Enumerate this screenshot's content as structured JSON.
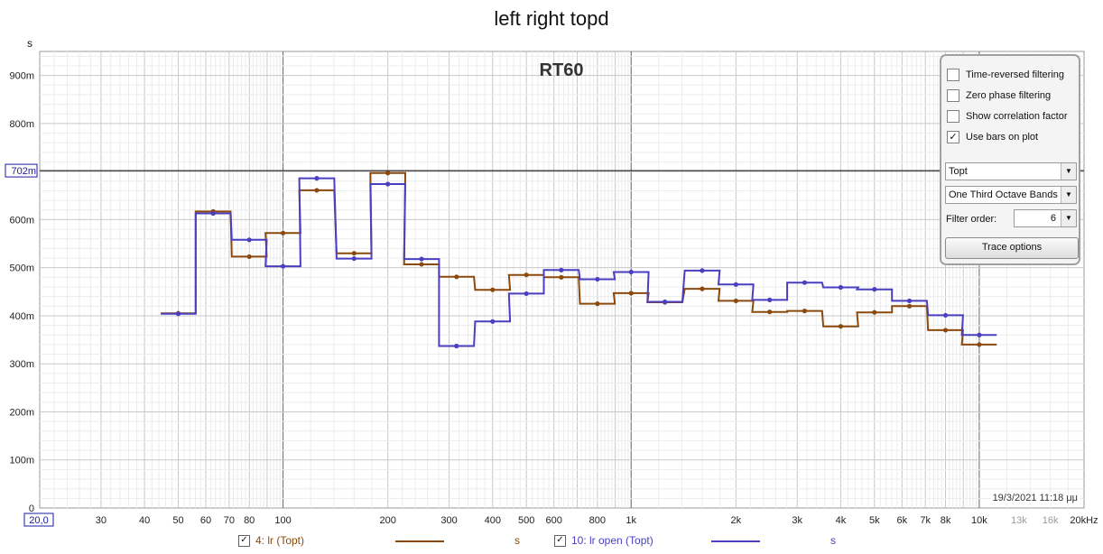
{
  "title": "left right topd",
  "y_unit": "s",
  "datestamp": "19/3/2021 11:18 μμ",
  "controls": {
    "checkboxes": [
      {
        "label": "Time-reversed filtering",
        "checked": false
      },
      {
        "label": "Zero phase filtering",
        "checked": false
      },
      {
        "label": "Show correlation factor",
        "checked": false
      },
      {
        "label": "Use bars on plot",
        "checked": true
      }
    ],
    "check_mark": "✓",
    "measure_select": "Topt",
    "band_select": "One Third Octave Bands",
    "filter_order_label": "Filter order:",
    "filter_order_value": "6",
    "trace_options_label": "Trace options",
    "dropdown_arrow": "▼"
  },
  "legend": [
    {
      "label": "4: lr (Topt)",
      "unit": "s",
      "color": "#8b4a0c"
    },
    {
      "label": "10: lr open (Topt)",
      "unit": "s",
      "color": "#4a3fc0"
    }
  ],
  "chart_data": {
    "type": "line",
    "title": "RT60",
    "x_scale": "log",
    "xlim": [
      20,
      20000
    ],
    "ylim": [
      0,
      0.95
    ],
    "grid": true,
    "legend_placement": "bottom",
    "cursor_y": 0.702,
    "cursor_y_label": "702m",
    "x_ticks": [
      {
        "value": 20,
        "label": "20,0"
      },
      {
        "value": 30,
        "label": "30"
      },
      {
        "value": 40,
        "label": "40"
      },
      {
        "value": 50,
        "label": "50"
      },
      {
        "value": 60,
        "label": "60"
      },
      {
        "value": 70,
        "label": "70"
      },
      {
        "value": 80,
        "label": "80"
      },
      {
        "value": 100,
        "label": "100"
      },
      {
        "value": 200,
        "label": "200"
      },
      {
        "value": 300,
        "label": "300"
      },
      {
        "value": 400,
        "label": "400"
      },
      {
        "value": 500,
        "label": "500"
      },
      {
        "value": 600,
        "label": "600"
      },
      {
        "value": 800,
        "label": "800"
      },
      {
        "value": 1000,
        "label": "1k"
      },
      {
        "value": 2000,
        "label": "2k"
      },
      {
        "value": 3000,
        "label": "3k"
      },
      {
        "value": 4000,
        "label": "4k"
      },
      {
        "value": 5000,
        "label": "5k"
      },
      {
        "value": 6000,
        "label": "6k"
      },
      {
        "value": 7000,
        "label": "7k"
      },
      {
        "value": 8000,
        "label": "8k"
      },
      {
        "value": 10000,
        "label": "10k"
      },
      {
        "value": 13000,
        "label": "13k"
      },
      {
        "value": 16000,
        "label": "16k"
      },
      {
        "value": 20000,
        "label": "20kHz"
      }
    ],
    "y_ticks": [
      {
        "value": 0,
        "label": "0"
      },
      {
        "value": 0.1,
        "label": "100m"
      },
      {
        "value": 0.2,
        "label": "200m"
      },
      {
        "value": 0.3,
        "label": "300m"
      },
      {
        "value": 0.4,
        "label": "400m"
      },
      {
        "value": 0.5,
        "label": "500m"
      },
      {
        "value": 0.6,
        "label": "600m"
      },
      {
        "value": 0.8,
        "label": "800m"
      },
      {
        "value": 0.9,
        "label": "900m"
      }
    ],
    "x": [
      50,
      63,
      80,
      100,
      125,
      160,
      200,
      250,
      315,
      400,
      500,
      630,
      800,
      1000,
      1250,
      1600,
      2000,
      2500,
      3150,
      4000,
      5000,
      6300,
      8000,
      10000
    ],
    "series": [
      {
        "name": "4: lr (Topt)",
        "color": "#8b4a0c",
        "values": [
          0.405,
          0.617,
          0.523,
          0.572,
          0.661,
          0.53,
          0.697,
          0.507,
          0.481,
          0.454,
          0.485,
          0.48,
          0.425,
          0.447,
          0.428,
          0.456,
          0.431,
          0.408,
          0.41,
          0.378,
          0.407,
          0.42,
          0.37,
          0.34
        ]
      },
      {
        "name": "10: lr open (Topt)",
        "color": "#4a3fc0",
        "values": [
          0.404,
          0.613,
          0.558,
          0.503,
          0.686,
          0.519,
          0.674,
          0.518,
          0.337,
          0.388,
          0.446,
          0.495,
          0.476,
          0.491,
          0.429,
          0.494,
          0.465,
          0.433,
          0.469,
          0.459,
          0.455,
          0.431,
          0.401,
          0.36
        ]
      }
    ]
  }
}
